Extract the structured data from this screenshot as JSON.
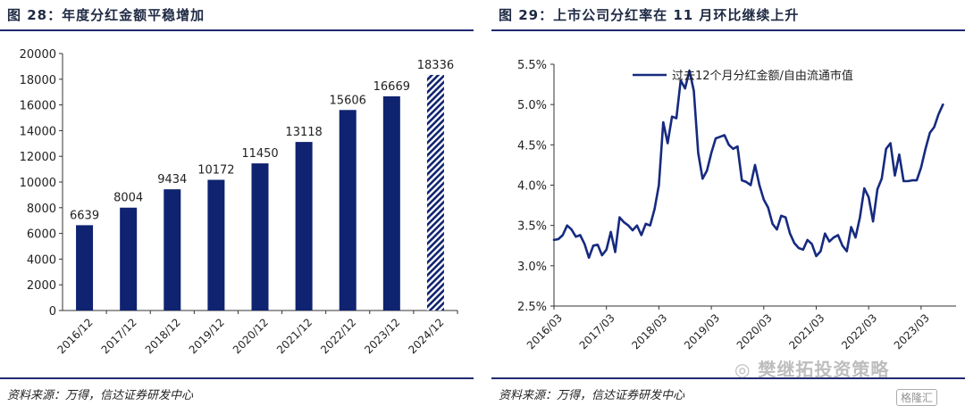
{
  "left": {
    "title": "图 28：年度分红金额平稳增加",
    "source": "资料来源：万得，信达证券研发中心"
  },
  "right": {
    "title": "图 29：上市公司分红率在 11 月环比继续上升",
    "source": "资料来源：万得，信达证券研发中心"
  },
  "watermark": {
    "text": "樊继拓投资策略",
    "logo_text": "格隆汇",
    "icon": "wechat-icon"
  },
  "colors": {
    "bar": "#0f2370",
    "line": "#162a80",
    "rule": "#1f2a70"
  },
  "chart_data": [
    {
      "type": "bar",
      "categories": [
        "2016/12",
        "2017/12",
        "2018/12",
        "2019/12",
        "2020/12",
        "2021/12",
        "2022/12",
        "2023/12",
        "2024/12"
      ],
      "values": [
        6639,
        8004,
        9434,
        10172,
        11450,
        13118,
        15606,
        16669,
        18336
      ],
      "value_labels": [
        "6639",
        "8004",
        "9434",
        "10172",
        "11450",
        "13118",
        "15606",
        "16669",
        "18336"
      ],
      "forecast_index": 8,
      "ylim": [
        0,
        20000
      ],
      "yticks": [
        "0",
        "2000",
        "4000",
        "6000",
        "8000",
        "10000",
        "12000",
        "14000",
        "16000",
        "18000",
        "20000"
      ],
      "grid": false
    },
    {
      "type": "line",
      "legend": "过去12个月分红金额/自由流通市值",
      "legend_position": "top",
      "x_start": "2016-03",
      "x_end": "2023-11",
      "xticks": [
        "2016/03",
        "2017/03",
        "2018/03",
        "2019/03",
        "2020/03",
        "2021/03",
        "2022/03",
        "2023/03"
      ],
      "yticks": [
        "2.5%",
        "3.0%",
        "3.5%",
        "4.0%",
        "4.5%",
        "5.0%",
        "5.5%"
      ],
      "ylim": [
        2.5,
        5.5
      ],
      "values": [
        3.32,
        3.33,
        3.38,
        3.5,
        3.45,
        3.36,
        3.38,
        3.27,
        3.1,
        3.25,
        3.26,
        3.13,
        3.2,
        3.42,
        3.17,
        3.6,
        3.54,
        3.5,
        3.44,
        3.5,
        3.38,
        3.52,
        3.5,
        3.7,
        4.0,
        4.78,
        4.52,
        4.85,
        4.83,
        5.3,
        5.2,
        5.42,
        5.17,
        4.4,
        4.08,
        4.18,
        4.4,
        4.58,
        4.6,
        4.62,
        4.5,
        4.45,
        4.48,
        4.06,
        4.04,
        4.0,
        4.25,
        4.0,
        3.82,
        3.72,
        3.52,
        3.45,
        3.62,
        3.6,
        3.4,
        3.28,
        3.22,
        3.2,
        3.32,
        3.27,
        3.12,
        3.18,
        3.4,
        3.3,
        3.35,
        3.38,
        3.25,
        3.18,
        3.48,
        3.35,
        3.6,
        3.96,
        3.85,
        3.55,
        3.95,
        4.08,
        4.45,
        4.52,
        4.12,
        4.38,
        4.05,
        4.05,
        4.06,
        4.06,
        4.22,
        4.45,
        4.65,
        4.72,
        4.88,
        5.0
      ],
      "grid": false
    }
  ]
}
